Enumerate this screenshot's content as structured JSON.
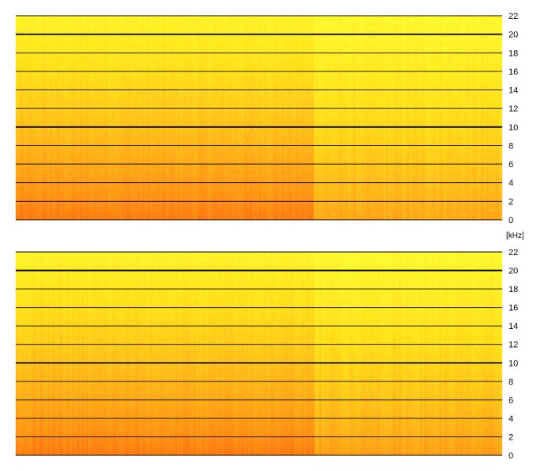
{
  "chart_data": [
    {
      "type": "heatmap",
      "title": "",
      "xlabel": "",
      "ylabel": "",
      "y_unit": "[kHz]",
      "ylim": [
        0,
        22
      ],
      "y_ticks": [
        0,
        2,
        4,
        6,
        8,
        10,
        12,
        14,
        16,
        18,
        20,
        22
      ],
      "y_tick_labels": [
        "0",
        "2",
        "4",
        "6",
        "8",
        "10",
        "12",
        "14",
        "16",
        "18",
        "20",
        "22"
      ],
      "emphasized_gridlines": [
        10,
        20
      ],
      "grid": true,
      "colormap": [
        "#ffff33",
        "#ffe11a",
        "#ffb619",
        "#ff8c14",
        "#ff5a0a"
      ],
      "description_of_values": "spectrogram energy: high at low frequencies (red), decreasing toward 22 kHz (yellow)",
      "segments": [
        {
          "x_start": 0,
          "x_end": 0.61,
          "low_band_intensity": 0.85,
          "high_band_intensity": 0.1
        },
        {
          "x_start": 0.61,
          "x_end": 1.0,
          "low_band_intensity": 0.6,
          "high_band_intensity": 0.05
        }
      ]
    },
    {
      "type": "heatmap",
      "title": "",
      "xlabel": "",
      "ylabel": "",
      "y_unit": "",
      "ylim": [
        0,
        22
      ],
      "y_ticks": [
        0,
        2,
        4,
        6,
        8,
        10,
        12,
        14,
        16,
        18,
        20,
        22
      ],
      "y_tick_labels": [
        "0",
        "2",
        "4",
        "6",
        "8",
        "10",
        "12",
        "14",
        "16",
        "18",
        "20",
        "22"
      ],
      "emphasized_gridlines": [
        10,
        20
      ],
      "grid": true,
      "colormap": [
        "#ffff33",
        "#ffe11a",
        "#ffb619",
        "#ff8c14",
        "#ff5a0a"
      ],
      "description_of_values": "spectrogram energy: high at low frequencies (red), decreasing toward 22 kHz (yellow)",
      "segments": [
        {
          "x_start": 0,
          "x_end": 0.61,
          "low_band_intensity": 0.85,
          "high_band_intensity": 0.1
        },
        {
          "x_start": 0.61,
          "x_end": 1.0,
          "low_band_intensity": 0.65,
          "high_band_intensity": 0.05
        }
      ]
    }
  ]
}
